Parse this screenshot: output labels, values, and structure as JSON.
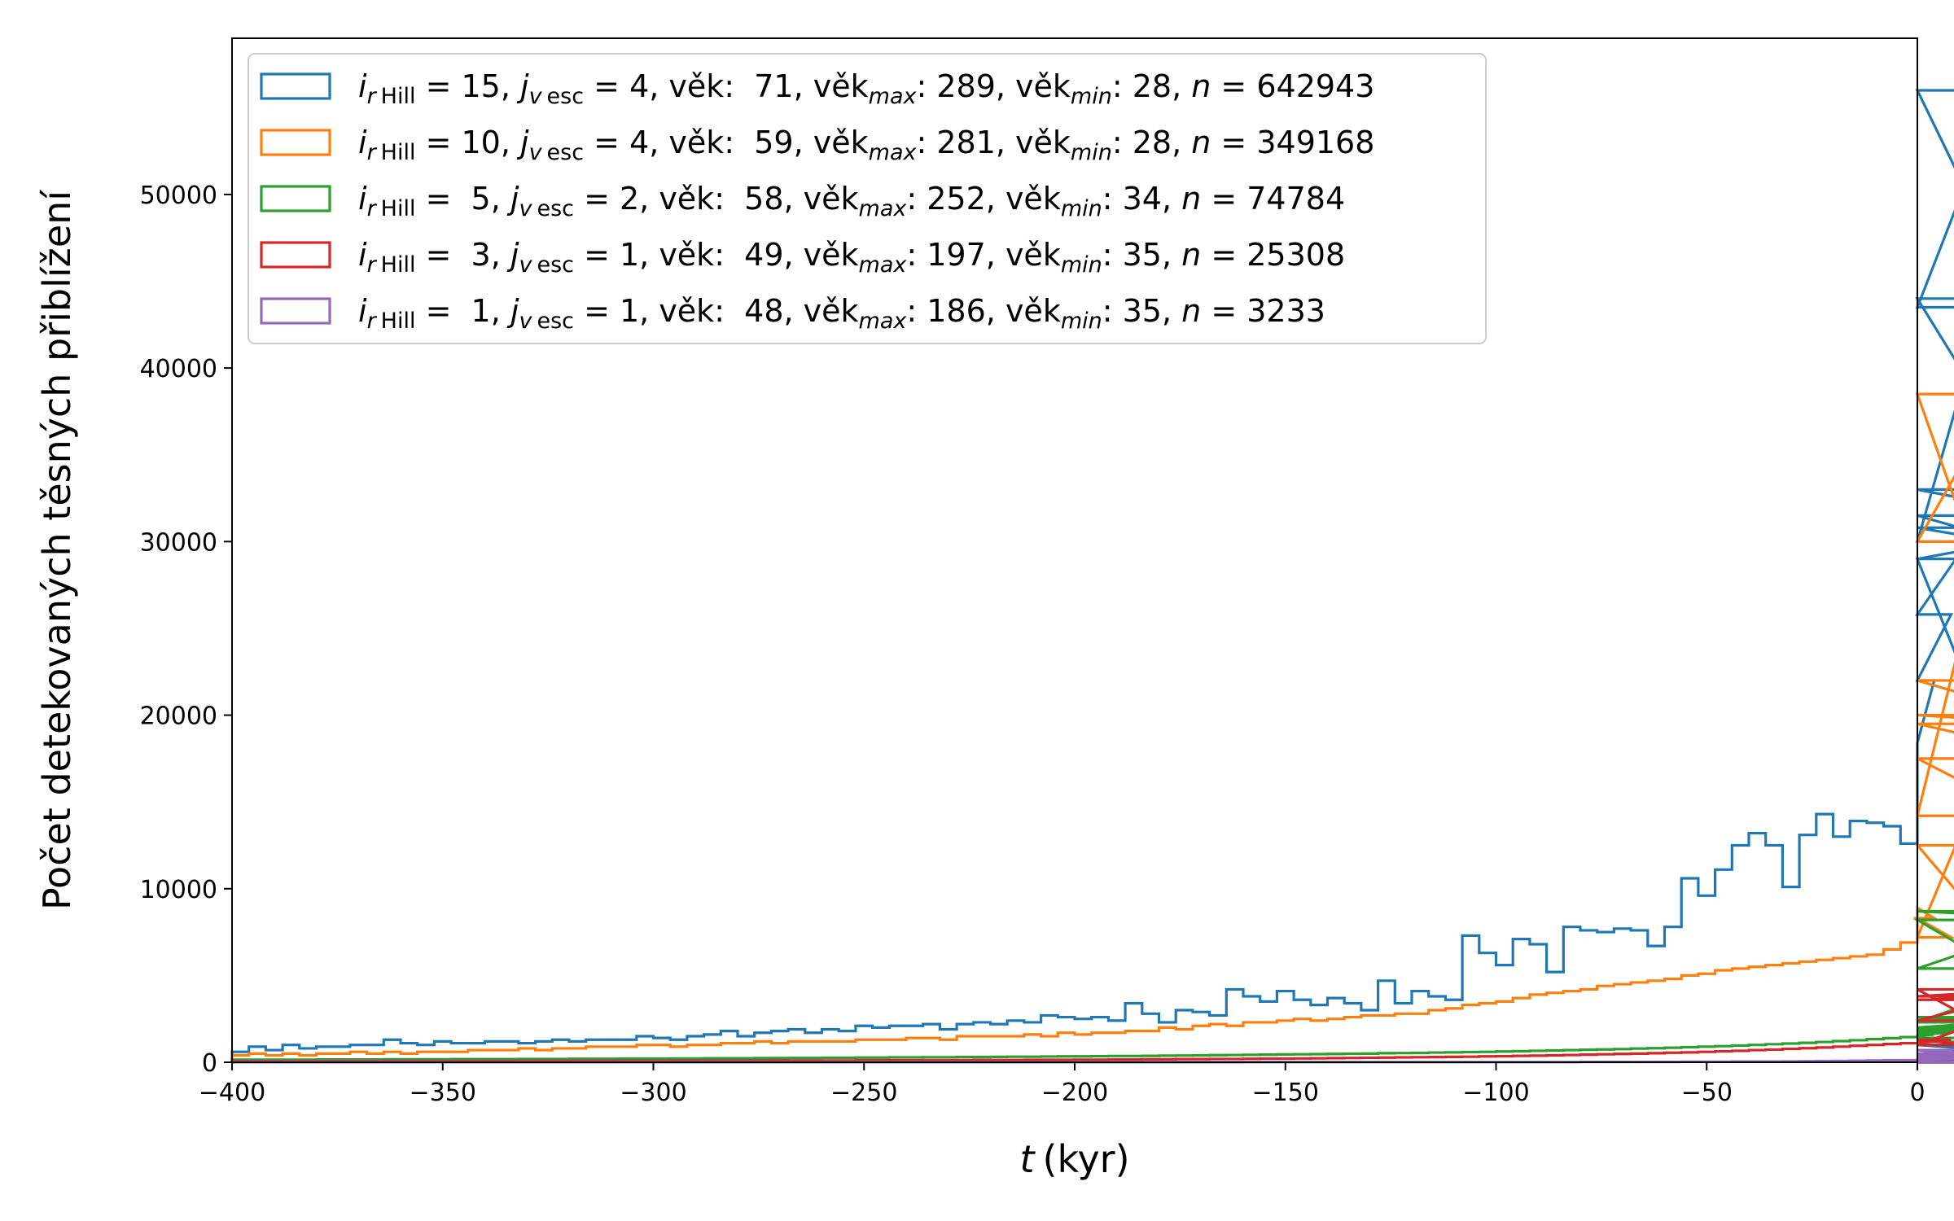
{
  "chart_data": {
    "type": "histogram-step",
    "xlabel_var": "t",
    "xlabel_unit": "(kyr)",
    "ylabel": "Počet detekovaných těsných přiblížení",
    "xlim": [
      -400,
      0
    ],
    "ylim": [
      0,
      59000
    ],
    "xticks": [
      -400,
      -350,
      -300,
      -250,
      -200,
      -150,
      -100,
      -50,
      0
    ],
    "xtick_labels": [
      "−400",
      "−350",
      "−300",
      "−250",
      "−200",
      "−150",
      "−100",
      "−50",
      "0"
    ],
    "yticks": [
      0,
      10000,
      20000,
      30000,
      40000,
      50000
    ],
    "ytick_labels": [
      "0",
      "10000",
      "20000",
      "30000",
      "40000",
      "50000"
    ],
    "bin_width": 4,
    "bin_start": -400,
    "legend_position": "top-left",
    "series": [
      {
        "color": "#1f77b4",
        "legend": {
          "i_val": "15",
          "j_val": "4",
          "vek": "71",
          "vek_max": "289",
          "vek_min": "28",
          "n": "642943"
        },
        "values": [
          600,
          900,
          700,
          1000,
          800,
          900,
          900,
          1000,
          1000,
          1300,
          1100,
          1000,
          1200,
          1100,
          1100,
          1200,
          1200,
          1100,
          1200,
          1300,
          1200,
          1300,
          1300,
          1300,
          1500,
          1400,
          1300,
          1500,
          1600,
          1800,
          1500,
          1700,
          1800,
          1900,
          1700,
          1900,
          1800,
          2100,
          2000,
          2100,
          2100,
          2200,
          1900,
          2200,
          2300,
          2200,
          2400,
          2300,
          2700,
          2600,
          2500,
          2600,
          2400,
          3400,
          2800,
          2300,
          3000,
          2900,
          2700,
          4200,
          3800,
          3500,
          4100,
          3600,
          3300,
          3700,
          3400,
          3000,
          4700,
          3400,
          4100,
          3800,
          3600,
          7300,
          6300,
          5600,
          7100,
          6800,
          5200,
          7800,
          7600,
          7500,
          7700,
          7600,
          6700,
          7800,
          10600,
          9600,
          11100,
          12500,
          13200,
          12500,
          10100,
          13100,
          14300,
          13000,
          13900,
          13800,
          13600,
          12600,
          18400,
          22000,
          25800,
          30000,
          43500,
          56000,
          44000,
          33000,
          31500,
          29000,
          30800,
          29000,
          0,
          1000,
          0,
          0,
          0,
          0,
          0,
          0,
          0,
          0,
          0,
          0
        ],
        "_note": "blue"
      },
      {
        "color": "#ff7f0e",
        "legend": {
          "i_val": "10",
          "j_val": "4",
          "vek": "59",
          "vek_max": "281",
          "vek_min": "28",
          "n": "349168"
        },
        "values": [
          400,
          500,
          400,
          500,
          400,
          500,
          500,
          600,
          500,
          600,
          500,
          600,
          600,
          600,
          700,
          700,
          700,
          800,
          700,
          800,
          800,
          900,
          900,
          900,
          1000,
          1000,
          900,
          1000,
          1000,
          1100,
          1100,
          1200,
          1100,
          1200,
          1200,
          1200,
          1200,
          1300,
          1300,
          1300,
          1400,
          1400,
          1300,
          1500,
          1500,
          1500,
          1500,
          1600,
          1500,
          1700,
          1600,
          1700,
          1700,
          1800,
          1800,
          2000,
          1900,
          2100,
          2200,
          2100,
          2300,
          2300,
          2400,
          2500,
          2400,
          2500,
          2600,
          2700,
          2700,
          2800,
          2800,
          3000,
          3100,
          3300,
          3400,
          3500,
          3700,
          3900,
          4000,
          4100,
          4200,
          4400,
          4500,
          4600,
          4700,
          4800,
          5000,
          5100,
          5300,
          5400,
          5500,
          5600,
          5700,
          5800,
          5900,
          6000,
          6100,
          6200,
          6500,
          6900,
          8900,
          8300,
          7200,
          14200,
          30000,
          38500,
          22000,
          20000,
          19500,
          17500,
          12500,
          0,
          0,
          0,
          0,
          0,
          0,
          0,
          0,
          0,
          0,
          0,
          0,
          0,
          0
        ],
        "_note": "orange"
      },
      {
        "color": "#2ca02c",
        "legend": {
          "i_val": " 5",
          "j_val": "2",
          "vek": "58",
          "vek_max": "252",
          "vek_min": "34",
          "n": "74784"
        },
        "values": [
          150,
          150,
          150,
          150,
          150,
          160,
          160,
          160,
          160,
          170,
          170,
          170,
          170,
          180,
          180,
          180,
          180,
          190,
          190,
          190,
          200,
          200,
          200,
          210,
          210,
          210,
          220,
          220,
          230,
          230,
          230,
          240,
          240,
          250,
          250,
          260,
          260,
          270,
          270,
          280,
          280,
          290,
          290,
          300,
          300,
          310,
          320,
          320,
          330,
          340,
          340,
          350,
          360,
          360,
          370,
          380,
          390,
          400,
          410,
          420,
          430,
          440,
          450,
          460,
          470,
          480,
          490,
          500,
          520,
          530,
          540,
          560,
          570,
          590,
          600,
          620,
          640,
          660,
          680,
          700,
          720,
          740,
          760,
          790,
          810,
          840,
          870,
          900,
          930,
          960,
          1000,
          1040,
          1080,
          1120,
          1170,
          1220,
          1270,
          1330,
          1390,
          1450,
          1520,
          1600,
          1700,
          1800,
          1900,
          2000,
          2400,
          2600,
          2300,
          5400,
          8700,
          8200,
          1400,
          0,
          0,
          0,
          0,
          0,
          0,
          0,
          0,
          0,
          0,
          0,
          0,
          0
        ],
        "_note": "green"
      },
      {
        "color": "#d62728",
        "legend": {
          "i_val": " 3",
          "j_val": "1",
          "vek": "49",
          "vek_max": "197",
          "vek_min": "35",
          "n": "25308"
        },
        "values": [
          60,
          60,
          60,
          60,
          60,
          60,
          60,
          60,
          60,
          70,
          70,
          70,
          70,
          70,
          70,
          70,
          70,
          70,
          80,
          80,
          80,
          80,
          80,
          80,
          80,
          80,
          90,
          90,
          90,
          90,
          90,
          90,
          100,
          100,
          100,
          100,
          100,
          110,
          110,
          110,
          110,
          120,
          120,
          120,
          130,
          130,
          130,
          140,
          140,
          140,
          150,
          150,
          160,
          160,
          170,
          170,
          180,
          180,
          190,
          190,
          200,
          210,
          210,
          220,
          230,
          240,
          250,
          260,
          270,
          280,
          290,
          300,
          310,
          320,
          340,
          350,
          370,
          380,
          400,
          420,
          440,
          460,
          480,
          500,
          520,
          550,
          570,
          600,
          630,
          660,
          700,
          730,
          770,
          810,
          850,
          900,
          950,
          1000,
          1050,
          1100,
          1100,
          1200,
          1300,
          1000,
          2400,
          3600,
          3800,
          4200,
          0,
          0,
          0,
          0,
          0,
          0,
          0,
          0,
          0,
          0,
          0,
          0,
          0,
          0,
          0,
          0,
          0
        ],
        "_note": "red"
      },
      {
        "color": "#9467bd",
        "legend": {
          "i_val": " 1",
          "j_val": "1",
          "vek": "48",
          "vek_max": "186",
          "vek_min": "35",
          "n": "3233"
        },
        "values": [
          5,
          5,
          5,
          5,
          5,
          5,
          5,
          5,
          5,
          5,
          5,
          5,
          5,
          5,
          5,
          5,
          5,
          5,
          5,
          5,
          5,
          5,
          5,
          5,
          5,
          5,
          5,
          5,
          5,
          5,
          5,
          5,
          5,
          5,
          5,
          5,
          5,
          5,
          5,
          5,
          5,
          5,
          5,
          5,
          5,
          5,
          5,
          5,
          5,
          5,
          5,
          5,
          5,
          5,
          5,
          5,
          5,
          5,
          5,
          5,
          10,
          10,
          10,
          10,
          10,
          10,
          10,
          10,
          10,
          10,
          10,
          10,
          10,
          10,
          10,
          10,
          10,
          10,
          10,
          10,
          20,
          20,
          20,
          20,
          20,
          20,
          30,
          30,
          30,
          40,
          40,
          40,
          50,
          60,
          70,
          80,
          90,
          100,
          110,
          120,
          140,
          160,
          180,
          200,
          250,
          300,
          400,
          500,
          700,
          0,
          0,
          0,
          0,
          0,
          0,
          0,
          0,
          0,
          0,
          0,
          0,
          0,
          0,
          0,
          0
        ],
        "_note": "purple"
      }
    ]
  }
}
